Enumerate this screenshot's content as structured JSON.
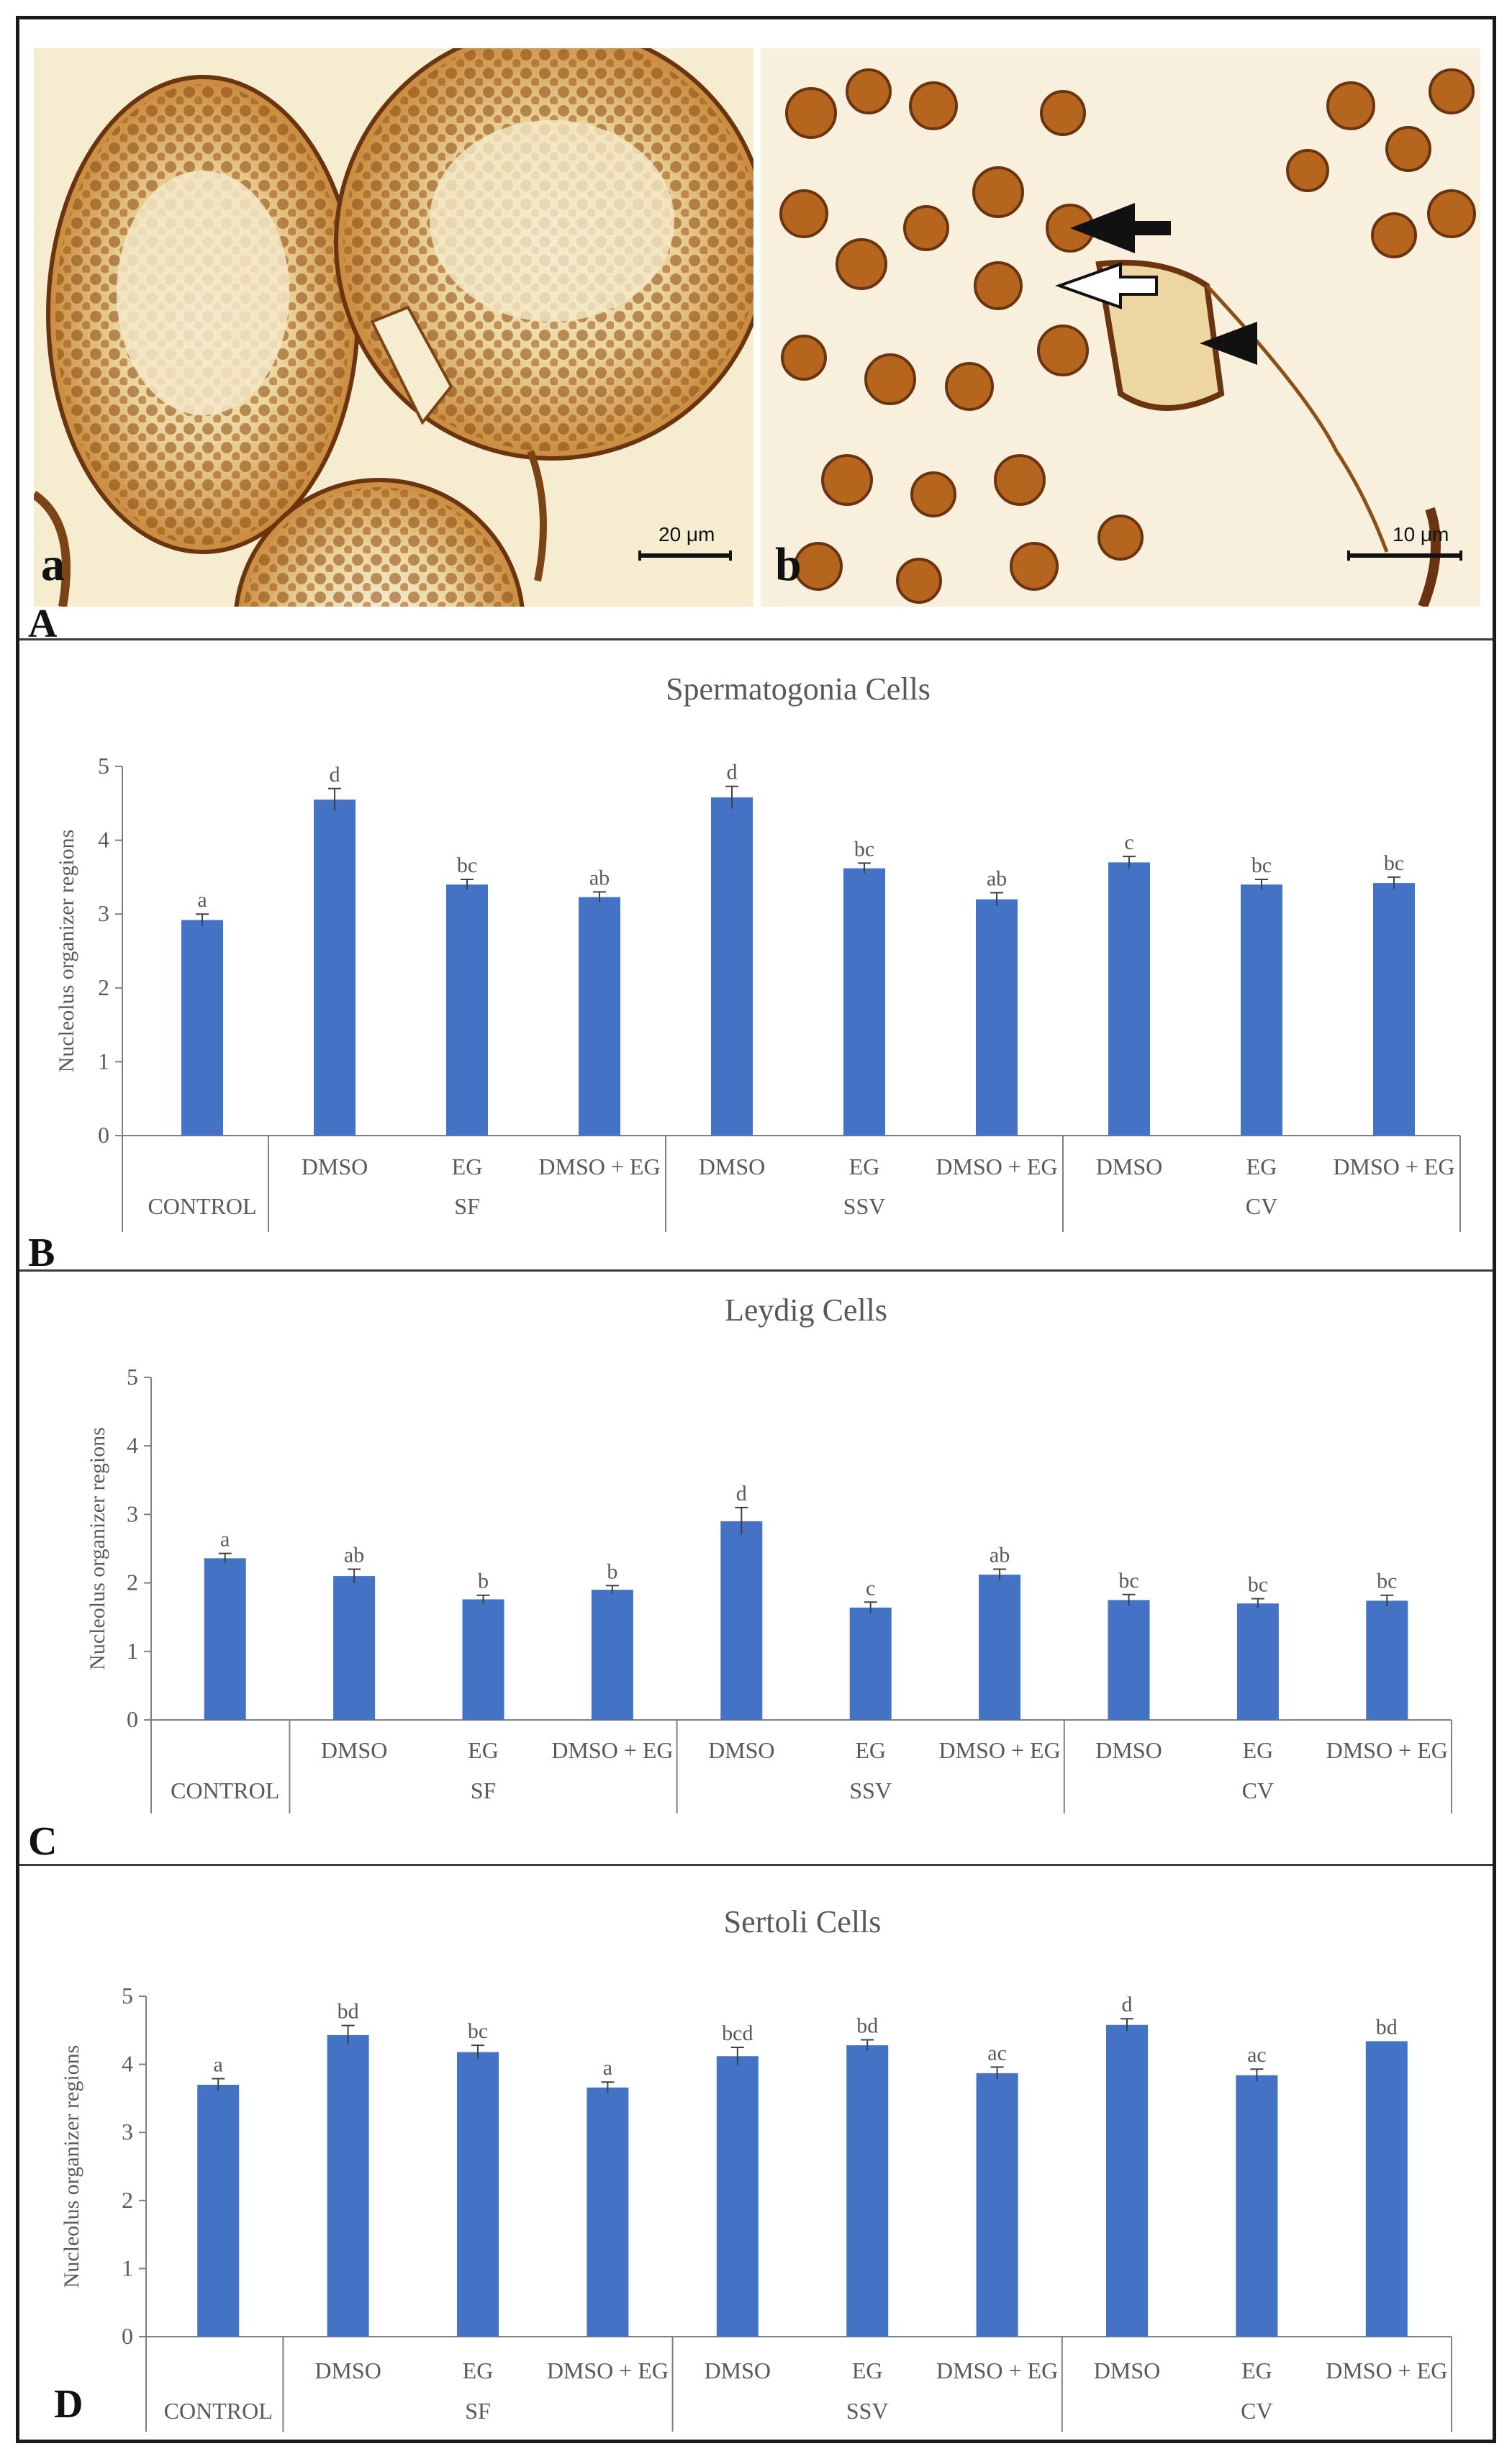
{
  "panels": {
    "A": {
      "letter": "A",
      "micro_a_label": "a",
      "micro_b_label": "b",
      "scale_a": "20 μm",
      "scale_b": "10 μm"
    },
    "B": {
      "letter": "B"
    },
    "C": {
      "letter": "C"
    },
    "D": {
      "letter": "D"
    }
  },
  "colors": {
    "bar": "#4472C4",
    "axis": "#808080",
    "text": "#595959",
    "stain_bg": "#f6ecd0",
    "stain_dark": "#6b3410",
    "stain_mid": "#b5651d"
  },
  "chart_data": [
    {
      "type": "bar",
      "title": "Spermatogonia Cells",
      "ylabel": "Nucleolus organizer regions",
      "ylim": [
        0,
        5
      ],
      "yticks": [
        0,
        1,
        2,
        3,
        4,
        5
      ],
      "categories": [
        "",
        "DMSO",
        "EG",
        "DMSO + EG",
        "DMSO",
        "EG",
        "DMSO + EG",
        "DMSO",
        "EG",
        "DMSO + EG"
      ],
      "groups": [
        "CONTROL",
        "SF",
        "SSV",
        "CV"
      ],
      "values": [
        2.92,
        4.55,
        3.4,
        3.23,
        4.58,
        3.62,
        3.2,
        3.7,
        3.4,
        3.42
      ],
      "errors": [
        0.08,
        0.15,
        0.07,
        0.07,
        0.15,
        0.07,
        0.09,
        0.08,
        0.07,
        0.08
      ],
      "letters": [
        "a",
        "d",
        "bc",
        "ab",
        "d",
        "bc",
        "ab",
        "c",
        "bc",
        "bc"
      ]
    },
    {
      "type": "bar",
      "title": "Leydig Cells",
      "ylabel": "Nucleolus organizer regions",
      "ylim": [
        0,
        5
      ],
      "yticks": [
        0,
        1,
        2,
        3,
        4,
        5
      ],
      "categories": [
        "",
        "DMSO",
        "EG",
        "DMSO + EG",
        "DMSO",
        "EG",
        "DMSO + EG",
        "DMSO",
        "EG",
        "DMSO + EG"
      ],
      "groups": [
        "CONTROL",
        "SF",
        "SSV",
        "CV"
      ],
      "values": [
        2.36,
        2.1,
        1.76,
        1.9,
        2.9,
        1.64,
        2.12,
        1.75,
        1.7,
        1.74
      ],
      "errors": [
        0.07,
        0.1,
        0.06,
        0.06,
        0.2,
        0.08,
        0.08,
        0.08,
        0.07,
        0.08
      ],
      "letters": [
        "a",
        "ab",
        "b",
        "b",
        "d",
        "c",
        "ab",
        "bc",
        "bc",
        "bc"
      ]
    },
    {
      "type": "bar",
      "title": "Sertoli Cells",
      "ylabel": "Nucleolus organizer regions",
      "ylim": [
        0,
        5
      ],
      "yticks": [
        0,
        1,
        2,
        3,
        4,
        5
      ],
      "categories": [
        "",
        "DMSO",
        "EG",
        "DMSO + EG",
        "DMSO",
        "EG",
        "DMSO + EG",
        "DMSO",
        "EG",
        "DMSO + EG"
      ],
      "groups": [
        "CONTROL",
        "SF",
        "SSV",
        "CV"
      ],
      "values": [
        3.7,
        4.43,
        4.18,
        3.66,
        4.12,
        4.28,
        3.87,
        4.58,
        3.84,
        4.34
      ],
      "errors": [
        0.09,
        0.14,
        0.1,
        0.08,
        0.13,
        0.08,
        0.09,
        0.09,
        0.09,
        0.0
      ],
      "letters": [
        "a",
        "bd",
        "bc",
        "a",
        "bcd",
        "bd",
        "ac",
        "d",
        "ac",
        "bd"
      ]
    }
  ]
}
